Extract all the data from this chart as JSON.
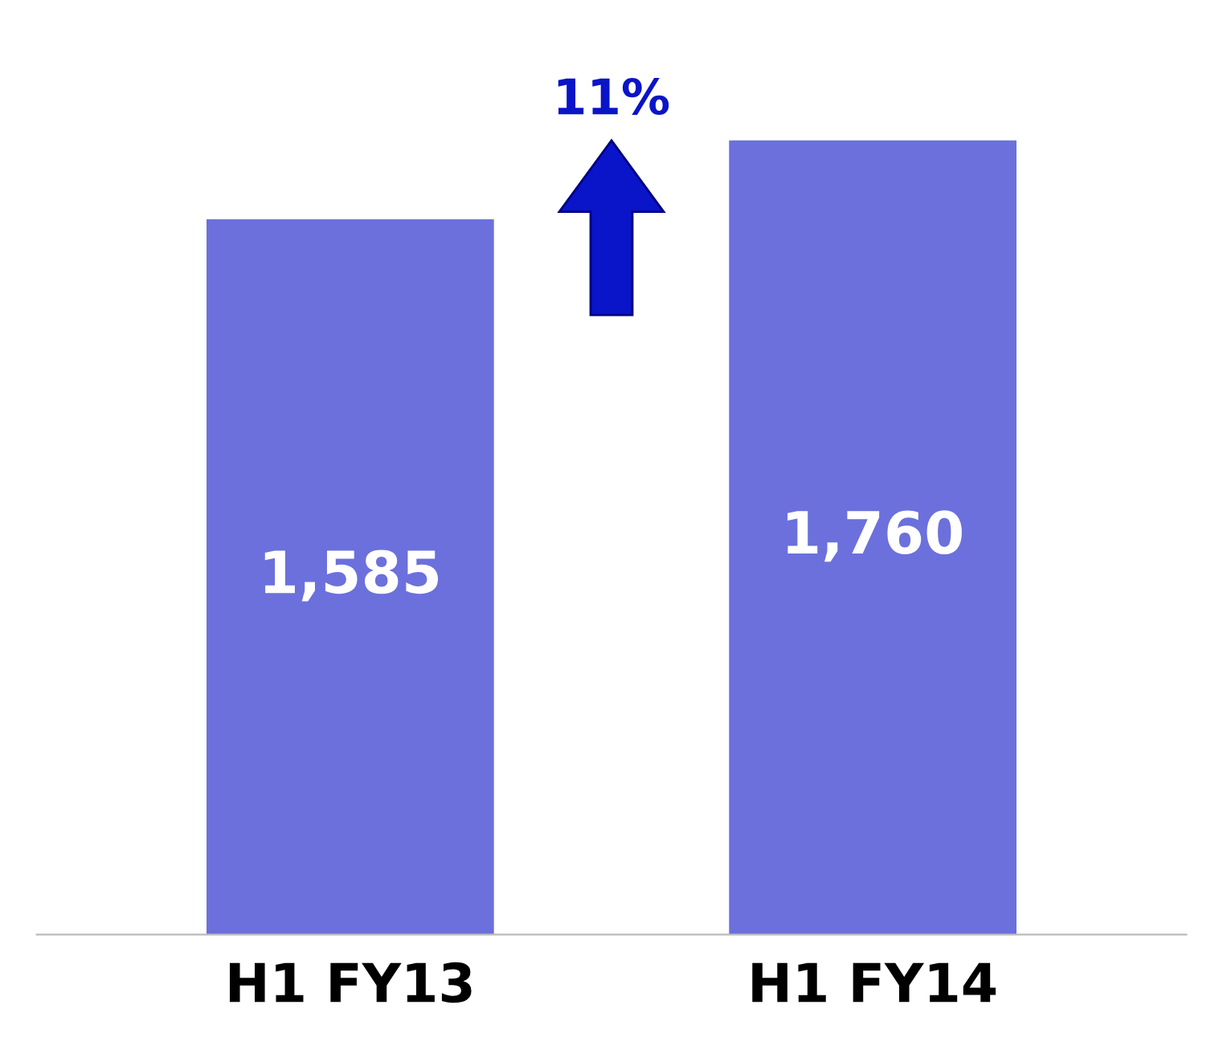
{
  "chart_data": {
    "type": "bar",
    "categories": [
      "H1 FY13",
      "H1 FY14"
    ],
    "values": [
      1585,
      1760
    ],
    "color": "#6b70dc",
    "value_labels": [
      "1,585",
      "1,760"
    ],
    "grid": false,
    "annotations": [
      "11%"
    ]
  }
}
